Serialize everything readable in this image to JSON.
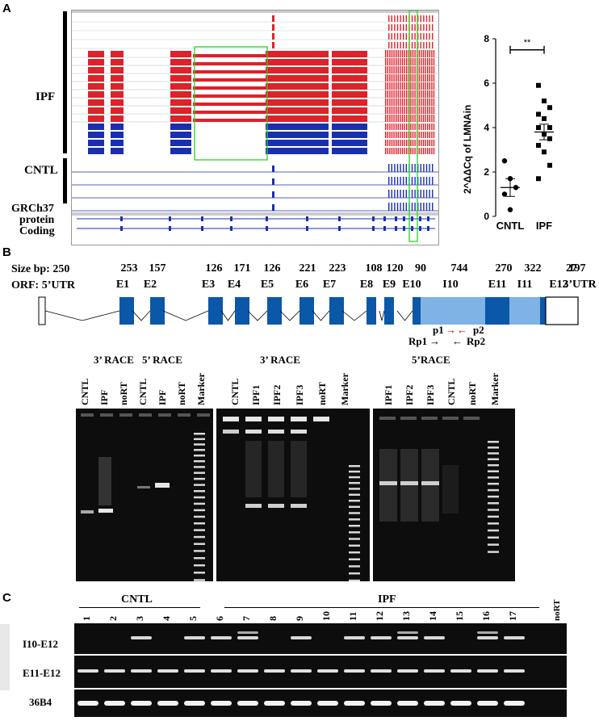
{
  "panels": {
    "a": "A",
    "b": "B",
    "c": "C"
  },
  "panelA": {
    "row_labels": {
      "ipf": "IPF",
      "cntl": "CNTL",
      "ref1": "GRCh37",
      "ref2": "protein",
      "ref3": "Coding"
    },
    "colors": {
      "ipf_red": "#e0202a",
      "cntl_blue": "#1a2fb0",
      "box_green": "#2bd12b"
    }
  },
  "chart_data": {
    "type": "scatter",
    "title": "",
    "xlabel": "",
    "ylabel": "2^ΔΔCq of LMNAin",
    "categories": [
      "CNTL",
      "IPF"
    ],
    "ylim": [
      0,
      8
    ],
    "yticks": [
      "0",
      "2",
      "4",
      "6",
      "8"
    ],
    "series": [
      {
        "name": "CNTL",
        "marker": "circle",
        "values": [
          2.5,
          1.7,
          1.3,
          1.0,
          0.3
        ],
        "mean": 1.3,
        "sem": 0.4
      },
      {
        "name": "IPF",
        "marker": "square",
        "values": [
          5.9,
          5.2,
          4.9,
          4.6,
          4.4,
          4.0,
          4.0,
          3.7,
          3.5,
          3.2,
          2.9,
          2.3,
          1.7
        ],
        "mean": 3.8,
        "sem": 0.35
      }
    ],
    "significance": "**"
  },
  "panelB": {
    "size_label": "Size bp: 250",
    "orf_label": "ORF: 5’UTR",
    "sizes": [
      "253",
      "157",
      "126",
      "171",
      "126",
      "221",
      "223",
      "108",
      "120",
      "90",
      "744",
      "270",
      "322",
      "27",
      "197"
    ],
    "exons": [
      "E1",
      "E2",
      "E3",
      "E4",
      "E5",
      "E6",
      "E7",
      "E8",
      "E9",
      "E10",
      "I10",
      "E11",
      "I11",
      "E12",
      "3’UTR"
    ],
    "primers": {
      "p1": "p1",
      "p2": "p2",
      "rp1": "Rp1",
      "rp2": "Rp2"
    },
    "gel1": {
      "headers": [
        "3’ RACE",
        "5’ RACE"
      ],
      "lanes": [
        "CNTL",
        "IPF",
        "noRT",
        "CNTL",
        "IPF",
        "noRT",
        "Marker"
      ]
    },
    "gel2": {
      "header": "3’ RACE",
      "lanes": [
        "CNTL",
        "IPF1",
        "IPF2",
        "IPF3",
        "noRT",
        "Marker"
      ]
    },
    "gel3": {
      "header": "5’RACE",
      "lanes": [
        "IPF1",
        "IPF2",
        "IPF3",
        "CNTL",
        "noRT",
        "Marker"
      ]
    }
  },
  "panelC": {
    "group_cntl": "CNTL",
    "group_ipf": "IPF",
    "lanes": [
      "1",
      "2",
      "3",
      "4",
      "5",
      "6",
      "7",
      "8",
      "9",
      "10",
      "11",
      "12",
      "13",
      "14",
      "15",
      "16",
      "17"
    ],
    "nort": "noRT",
    "rows": [
      "I10-E12",
      "E11-E12",
      "36B4"
    ]
  }
}
